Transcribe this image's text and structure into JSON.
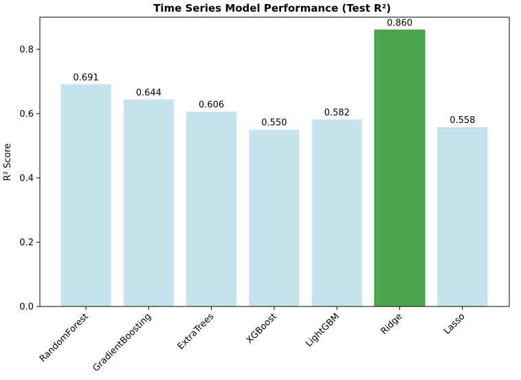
{
  "chart_data": {
    "type": "bar",
    "title": "Time Series Model Performance (Test R²)",
    "xlabel": "",
    "ylabel": "R² Score",
    "categories": [
      "RandomForest",
      "GradientBoosting",
      "ExtraTrees",
      "XGBoost",
      "LightGBM",
      "Ridge",
      "Lasso"
    ],
    "values": [
      0.691,
      0.644,
      0.606,
      0.55,
      0.582,
      0.86,
      0.558
    ],
    "data_labels": [
      "0.691",
      "0.644",
      "0.606",
      "0.550",
      "0.582",
      "0.860",
      "0.558"
    ],
    "ylim": [
      0,
      0.9
    ],
    "yticks": [
      0.0,
      0.2,
      0.4,
      0.6,
      0.8
    ],
    "ytick_labels": [
      "0.0",
      "0.2",
      "0.4",
      "0.6",
      "0.8"
    ],
    "grid": false,
    "colors": {
      "default_bar": "#c5e3ec",
      "highlight_bar": "#4ca64c",
      "highlight_edge": "#2e8b2e"
    },
    "highlight_index": 5
  }
}
